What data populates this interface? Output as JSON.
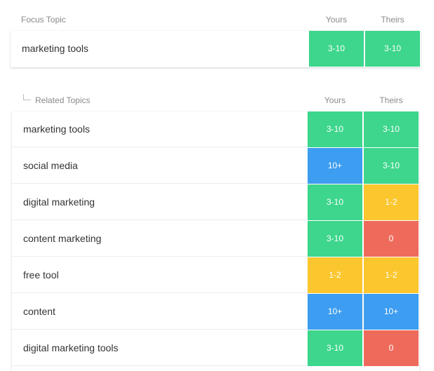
{
  "colors": {
    "green": "#3dd68c",
    "blue": "#3d9df0",
    "yellow": "#fcc62e",
    "red": "#ee6b5c"
  },
  "focus": {
    "header": "Focus Topic",
    "col_yours": "Yours",
    "col_theirs": "Theirs",
    "row": {
      "topic": "marketing tools",
      "yours": "3-10",
      "yours_color": "green",
      "theirs": "3-10",
      "theirs_color": "green"
    }
  },
  "related": {
    "header": "Related Topics",
    "col_yours": "Yours",
    "col_theirs": "Theirs",
    "rows": [
      {
        "topic": "marketing tools",
        "yours": "3-10",
        "yours_color": "green",
        "theirs": "3-10",
        "theirs_color": "green"
      },
      {
        "topic": "social media",
        "yours": "10+",
        "yours_color": "blue",
        "theirs": "3-10",
        "theirs_color": "green"
      },
      {
        "topic": "digital marketing",
        "yours": "3-10",
        "yours_color": "green",
        "theirs": "1-2",
        "theirs_color": "yellow"
      },
      {
        "topic": "content marketing",
        "yours": "3-10",
        "yours_color": "green",
        "theirs": "0",
        "theirs_color": "red"
      },
      {
        "topic": "free tool",
        "yours": "1-2",
        "yours_color": "yellow",
        "theirs": "1-2",
        "theirs_color": "yellow"
      },
      {
        "topic": "content",
        "yours": "10+",
        "yours_color": "blue",
        "theirs": "10+",
        "theirs_color": "blue"
      },
      {
        "topic": "digital marketing tools",
        "yours": "3-10",
        "yours_color": "green",
        "theirs": "0",
        "theirs_color": "red"
      }
    ]
  }
}
